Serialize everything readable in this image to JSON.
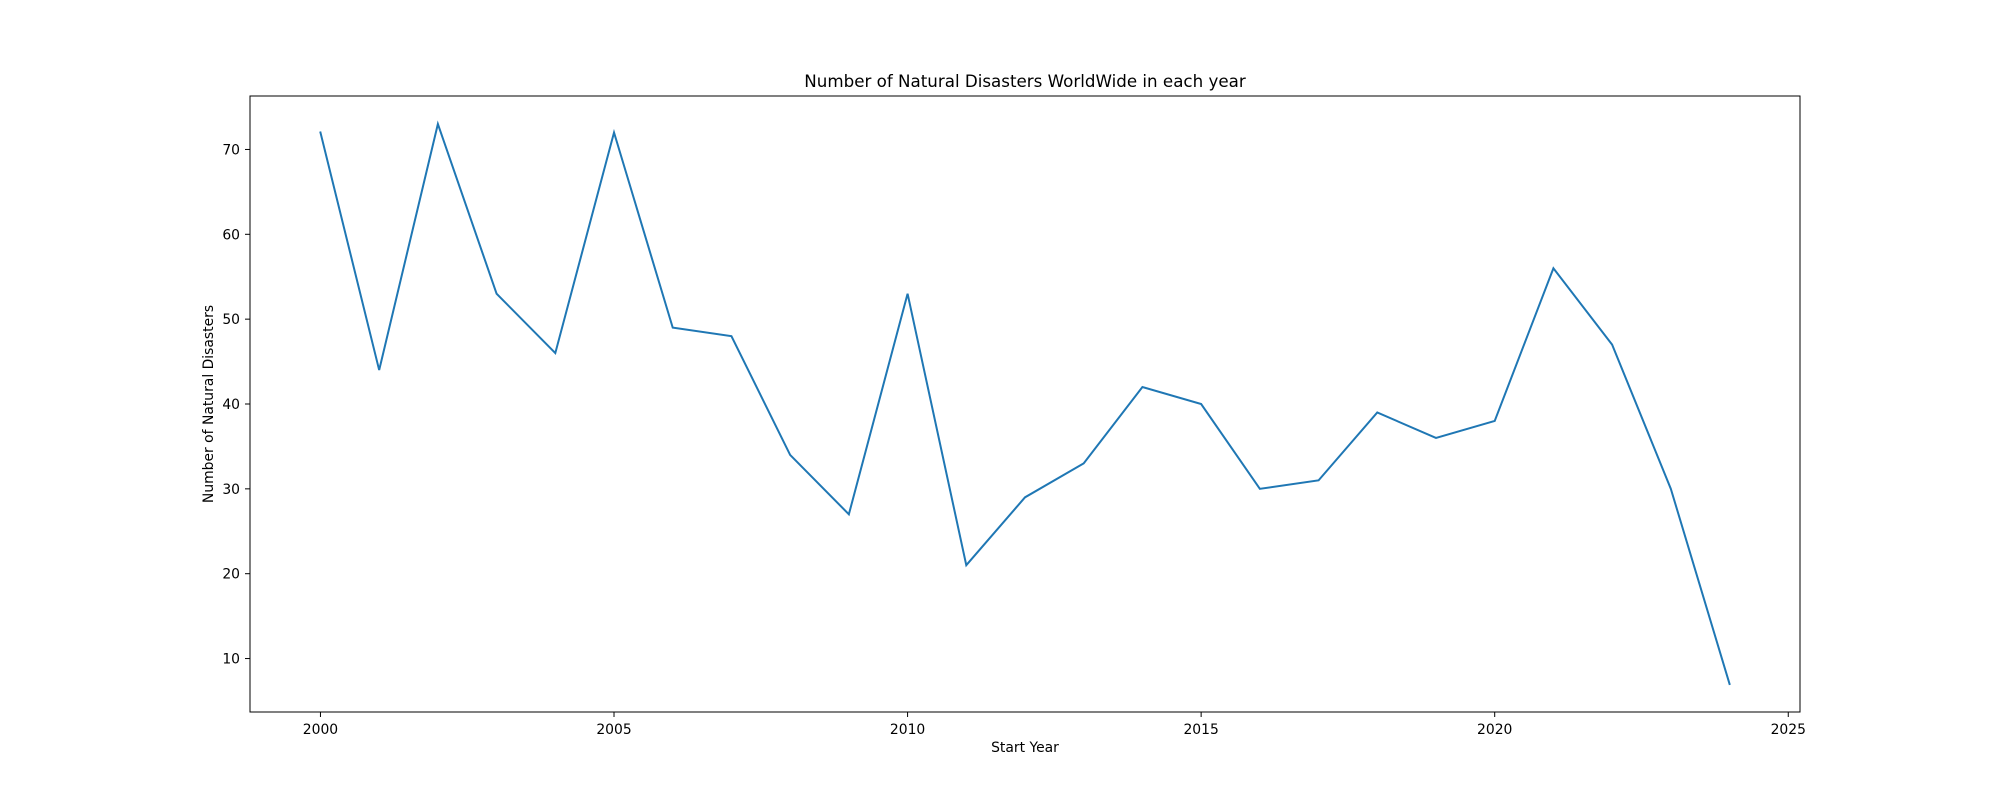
{
  "chart_data": {
    "type": "line",
    "title": "Number of Natural Disasters WorldWide in each year",
    "xlabel": "Start Year",
    "ylabel": "Number of Natural Disasters",
    "x": [
      2000,
      2001,
      2002,
      2003,
      2004,
      2005,
      2006,
      2007,
      2008,
      2009,
      2010,
      2011,
      2012,
      2013,
      2014,
      2015,
      2016,
      2017,
      2018,
      2019,
      2020,
      2021,
      2022,
      2023,
      2024
    ],
    "series": [
      {
        "values": [
          72,
          44,
          73,
          53,
          46,
          72,
          49,
          48,
          34,
          27,
          53,
          21,
          29,
          33,
          42,
          40,
          30,
          31,
          39,
          36,
          38,
          56,
          47,
          30,
          7
        ]
      }
    ],
    "xlim": [
      1998.8,
      2025.2
    ],
    "ylim": [
      3.7,
      76.3
    ],
    "xticks": [
      "2000",
      "2005",
      "2010",
      "2015",
      "2020",
      "2025"
    ],
    "yticks": [
      "10",
      "20",
      "30",
      "40",
      "50",
      "60",
      "70"
    ],
    "grid": false,
    "colors": {
      "line": "#1f77b4",
      "axes": "#000000"
    }
  }
}
